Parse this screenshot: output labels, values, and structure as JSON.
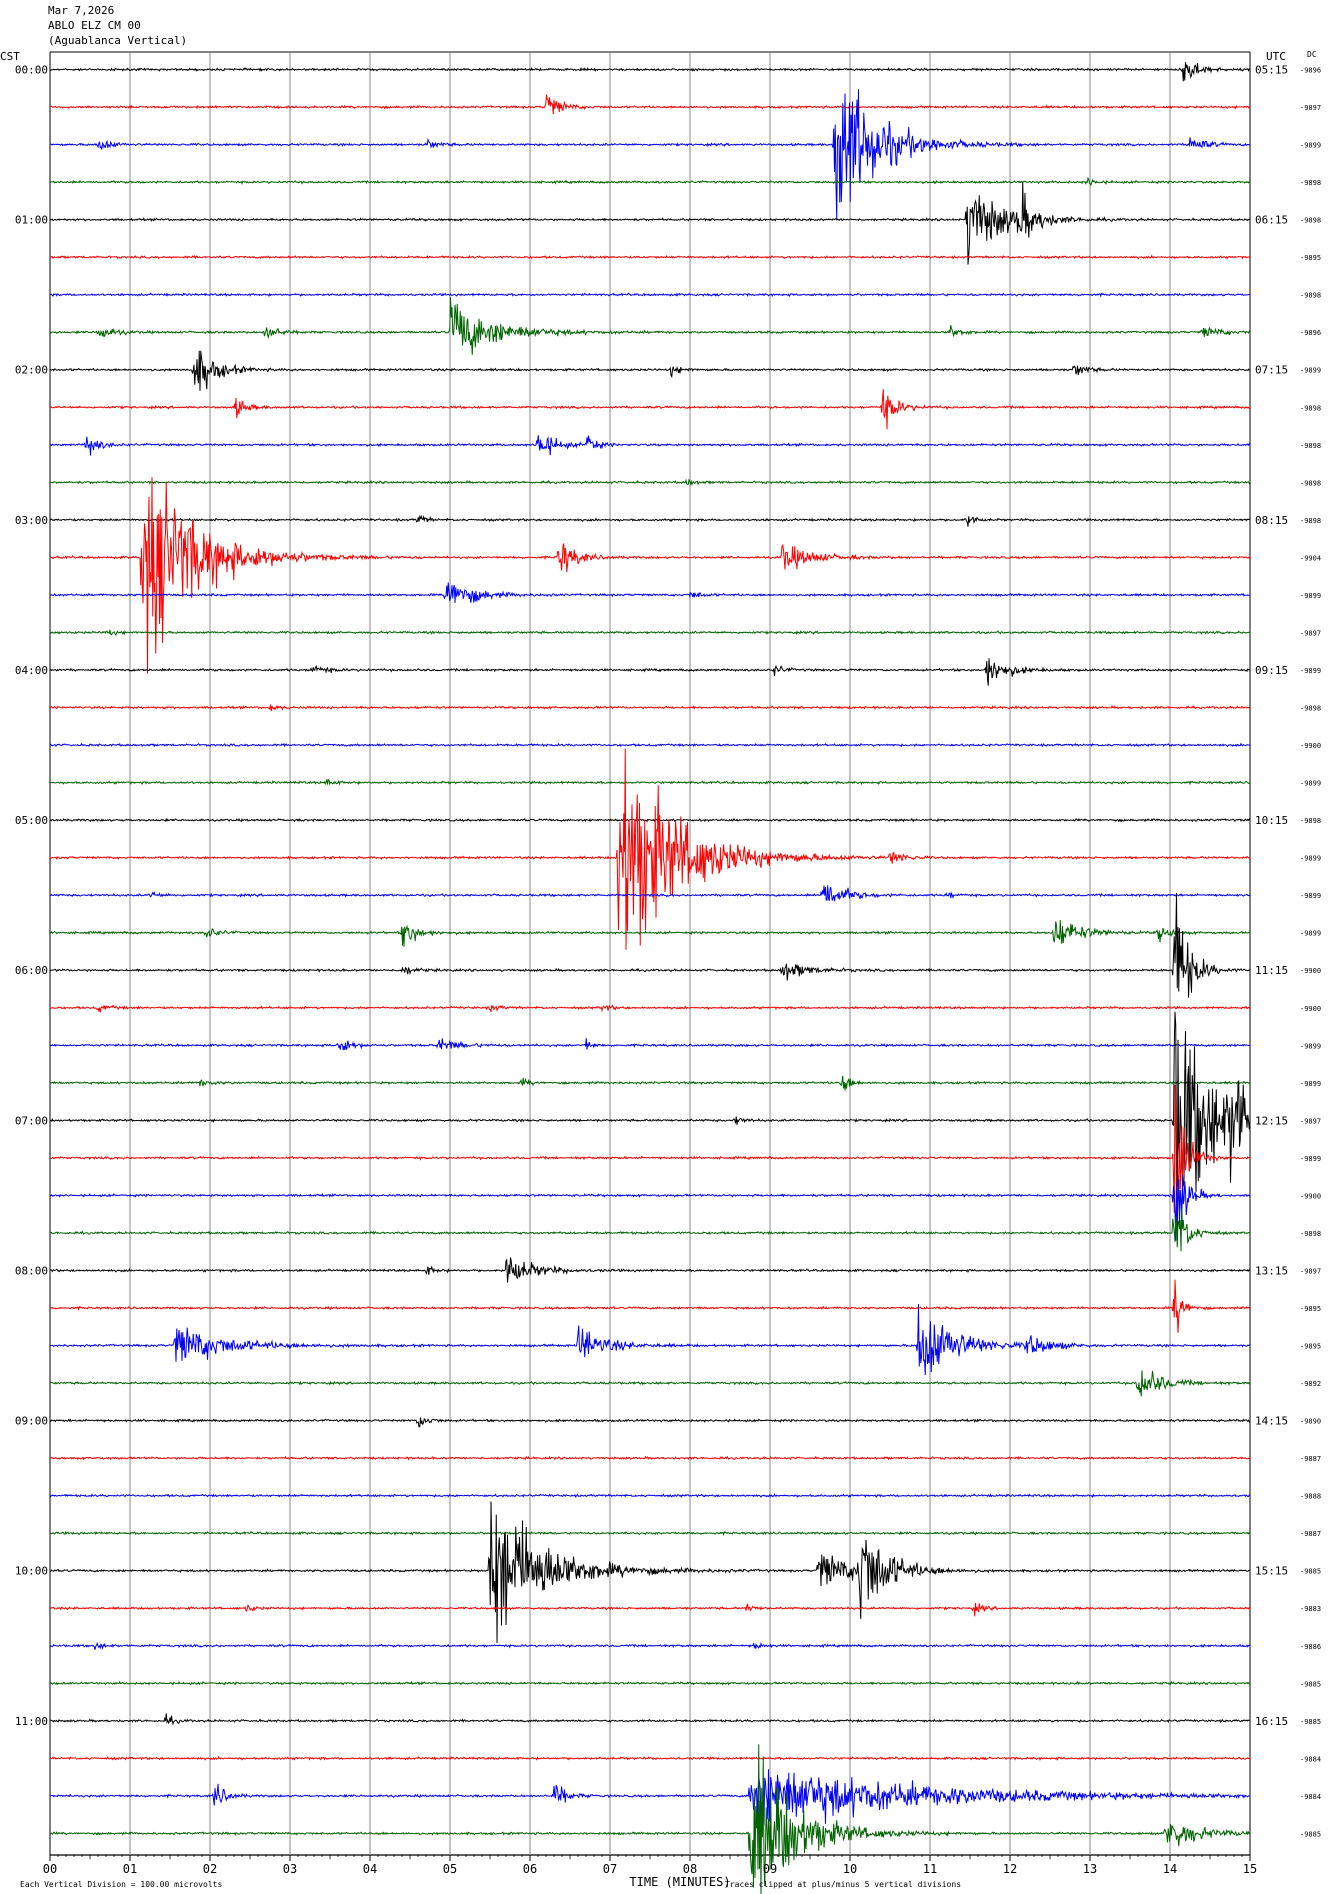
{
  "header": {
    "line1": "Mar 7,2026",
    "line2": "ABLO ELZ CM 00",
    "line3": "(Aguablanca Vertical)"
  },
  "left_axis_title": "CST",
  "right_axis_title": "UTC",
  "dc_title": "DC",
  "footer": {
    "left": "Each Vertical Division =  100.00 microvolts",
    "center": "TIME (MINUTES)",
    "right": "Traces clipped at plus/minus 5 vertical divisions"
  },
  "chart_data": {
    "type": "line",
    "title": "Mar 7,2026 ABLO ELZ CM 00 (Aguablanca Vertical)",
    "xlabel": "TIME (MINUTES)",
    "ylabel": "CST",
    "xlim": [
      0,
      15
    ],
    "x_ticks": [
      "00",
      "01",
      "02",
      "03",
      "04",
      "05",
      "06",
      "07",
      "08",
      "09",
      "10",
      "11",
      "12",
      "13",
      "14",
      "15"
    ],
    "trace_colors": [
      "#000000",
      "#ff0000",
      "#0000ff",
      "#006400"
    ],
    "hour_labels_cst": [
      "00:00",
      "01:00",
      "02:00",
      "03:00",
      "04:00",
      "05:00",
      "06:00",
      "07:00",
      "08:00",
      "09:00",
      "10:00",
      "11:00"
    ],
    "hour_labels_utc": [
      "05:15",
      "06:15",
      "07:15",
      "08:15",
      "09:15",
      "10:15",
      "11:15",
      "12:15",
      "13:15",
      "14:15",
      "15:15",
      "16:15"
    ],
    "dc_offsets": [
      "-9896",
      "-9897",
      "-9899",
      "-9898",
      "-9898",
      "-9895",
      "-9898",
      "-9896",
      "-9899",
      "-9898",
      "-9898",
      "-9898",
      "-9898",
      "-9904",
      "-9899",
      "-9897",
      "-9899",
      "-9898",
      "-9900",
      "-9899",
      "-9898",
      "-9899",
      "-9899",
      "-9899",
      "-9900",
      "-9900",
      "-9899",
      "-9899",
      "-9897",
      "-9899",
      "-9900",
      "-9898",
      "-9897",
      "-9895",
      "-9895",
      "-9892",
      "-9890",
      "-9887",
      "-9888",
      "-9887",
      "-9885",
      "-9883",
      "-9886",
      "-9885",
      "-9885",
      "-9884",
      "-9884",
      "-9885"
    ],
    "noise_level": 0.7,
    "events": [
      {
        "row": 0,
        "minute": 14.15,
        "amp": 14,
        "dur": 0.35
      },
      {
        "row": 1,
        "minute": 6.2,
        "amp": 12,
        "dur": 0.35
      },
      {
        "row": 2,
        "minute": 0.6,
        "amp": 6,
        "dur": 0.3
      },
      {
        "row": 2,
        "minute": 4.7,
        "amp": 4,
        "dur": 0.3
      },
      {
        "row": 2,
        "minute": 9.8,
        "amp": 70,
        "dur": 1.2
      },
      {
        "row": 2,
        "minute": 14.25,
        "amp": 8,
        "dur": 0.35
      },
      {
        "row": 3,
        "minute": 12.95,
        "amp": 4,
        "dur": 0.2
      },
      {
        "row": 4,
        "minute": 11.45,
        "amp": 32,
        "dur": 1.0
      },
      {
        "row": 4,
        "minute": 12.1,
        "amp": 20,
        "dur": 0.4
      },
      {
        "row": 7,
        "minute": 0.6,
        "amp": 6,
        "dur": 0.4
      },
      {
        "row": 7,
        "minute": 2.7,
        "amp": 7,
        "dur": 0.3
      },
      {
        "row": 7,
        "minute": 5.0,
        "amp": 24,
        "dur": 1.3
      },
      {
        "row": 7,
        "minute": 11.25,
        "amp": 5,
        "dur": 0.3
      },
      {
        "row": 7,
        "minute": 14.4,
        "amp": 4,
        "dur": 0.6
      },
      {
        "row": 8,
        "minute": 1.8,
        "amp": 20,
        "dur": 0.6
      },
      {
        "row": 8,
        "minute": 7.75,
        "amp": 4,
        "dur": 0.3
      },
      {
        "row": 8,
        "minute": 12.8,
        "amp": 6,
        "dur": 0.3
      },
      {
        "row": 9,
        "minute": 2.3,
        "amp": 8,
        "dur": 0.3
      },
      {
        "row": 9,
        "minute": 10.4,
        "amp": 15,
        "dur": 0.4
      },
      {
        "row": 10,
        "minute": 0.45,
        "amp": 10,
        "dur": 0.3
      },
      {
        "row": 10,
        "minute": 6.1,
        "amp": 14,
        "dur": 0.4
      },
      {
        "row": 10,
        "minute": 6.7,
        "amp": 12,
        "dur": 0.2
      },
      {
        "row": 11,
        "minute": 7.95,
        "amp": 3,
        "dur": 0.2
      },
      {
        "row": 12,
        "minute": 4.6,
        "amp": 4,
        "dur": 0.2
      },
      {
        "row": 12,
        "minute": 11.45,
        "amp": 7,
        "dur": 0.15
      },
      {
        "row": 13,
        "minute": 1.15,
        "amp": 80,
        "dur": 1.6
      },
      {
        "row": 13,
        "minute": 6.35,
        "amp": 16,
        "dur": 0.45
      },
      {
        "row": 13,
        "minute": 9.15,
        "amp": 10,
        "dur": 0.9
      },
      {
        "row": 14,
        "minute": 4.95,
        "amp": 16,
        "dur": 0.7
      },
      {
        "row": 14,
        "minute": 8.0,
        "amp": 3,
        "dur": 0.3
      },
      {
        "row": 15,
        "minute": 0.7,
        "amp": 3,
        "dur": 0.2
      },
      {
        "row": 16,
        "minute": 3.25,
        "amp": 4,
        "dur": 0.4
      },
      {
        "row": 16,
        "minute": 9.05,
        "amp": 5,
        "dur": 0.2
      },
      {
        "row": 16,
        "minute": 11.7,
        "amp": 12,
        "dur": 0.6
      },
      {
        "row": 17,
        "minute": 2.75,
        "amp": 3,
        "dur": 0.2
      },
      {
        "row": 19,
        "minute": 3.45,
        "amp": 3,
        "dur": 0.2
      },
      {
        "row": 21,
        "minute": 7.1,
        "amp": 95,
        "dur": 1.7
      },
      {
        "row": 21,
        "minute": 10.5,
        "amp": 5,
        "dur": 0.4
      },
      {
        "row": 22,
        "minute": 9.65,
        "amp": 14,
        "dur": 0.6
      },
      {
        "row": 22,
        "minute": 1.25,
        "amp": 3,
        "dur": 0.2
      },
      {
        "row": 22,
        "minute": 11.2,
        "amp": 3,
        "dur": 0.2
      },
      {
        "row": 23,
        "minute": 1.95,
        "amp": 5,
        "dur": 0.3
      },
      {
        "row": 23,
        "minute": 4.4,
        "amp": 12,
        "dur": 0.4
      },
      {
        "row": 23,
        "minute": 12.55,
        "amp": 14,
        "dur": 0.7
      },
      {
        "row": 23,
        "minute": 13.85,
        "amp": 6,
        "dur": 0.3
      },
      {
        "row": 24,
        "minute": 4.4,
        "amp": 4,
        "dur": 0.3
      },
      {
        "row": 24,
        "minute": 9.15,
        "amp": 8,
        "dur": 0.7
      },
      {
        "row": 24,
        "minute": 14.05,
        "amp": 60,
        "dur": 0.4
      },
      {
        "row": 25,
        "minute": 0.6,
        "amp": 3,
        "dur": 0.3
      },
      {
        "row": 25,
        "minute": 5.5,
        "amp": 3,
        "dur": 0.2
      },
      {
        "row": 25,
        "minute": 6.9,
        "amp": 3,
        "dur": 0.2
      },
      {
        "row": 26,
        "minute": 3.6,
        "amp": 8,
        "dur": 0.3
      },
      {
        "row": 26,
        "minute": 4.85,
        "amp": 5,
        "dur": 0.6
      },
      {
        "row": 26,
        "minute": 6.7,
        "amp": 6,
        "dur": 0.1
      },
      {
        "row": 27,
        "minute": 1.85,
        "amp": 3,
        "dur": 0.3
      },
      {
        "row": 27,
        "minute": 5.9,
        "amp": 3,
        "dur": 0.2
      },
      {
        "row": 27,
        "minute": 9.9,
        "amp": 9,
        "dur": 0.2
      },
      {
        "row": 28,
        "minute": 14.05,
        "amp": 90,
        "dur": 1.2
      },
      {
        "row": 28,
        "minute": 14.75,
        "amp": 40,
        "dur": 0.5
      },
      {
        "row": 28,
        "minute": 8.55,
        "amp": 4,
        "dur": 0.2
      },
      {
        "row": 29,
        "minute": 14.05,
        "amp": 60,
        "dur": 0.3
      },
      {
        "row": 30,
        "minute": 14.05,
        "amp": 40,
        "dur": 0.3
      },
      {
        "row": 31,
        "minute": 14.05,
        "amp": 35,
        "dur": 0.3
      },
      {
        "row": 32,
        "minute": 5.7,
        "amp": 12,
        "dur": 0.8
      },
      {
        "row": 32,
        "minute": 4.7,
        "amp": 4,
        "dur": 0.2
      },
      {
        "row": 33,
        "minute": 14.05,
        "amp": 25,
        "dur": 0.2
      },
      {
        "row": 34,
        "minute": 1.55,
        "amp": 16,
        "dur": 1.5
      },
      {
        "row": 34,
        "minute": 6.6,
        "amp": 14,
        "dur": 0.8
      },
      {
        "row": 34,
        "minute": 10.85,
        "amp": 36,
        "dur": 1.0
      },
      {
        "row": 34,
        "minute": 12.2,
        "amp": 8,
        "dur": 0.7
      },
      {
        "row": 35,
        "minute": 13.6,
        "amp": 16,
        "dur": 0.6
      },
      {
        "row": 36,
        "minute": 4.6,
        "amp": 7,
        "dur": 0.2
      },
      {
        "row": 40,
        "minute": 5.5,
        "amp": 60,
        "dur": 1.6
      },
      {
        "row": 40,
        "minute": 9.6,
        "amp": 16,
        "dur": 1.0
      },
      {
        "row": 40,
        "minute": 10.1,
        "amp": 40,
        "dur": 0.8
      },
      {
        "row": 41,
        "minute": 2.45,
        "amp": 3,
        "dur": 0.2
      },
      {
        "row": 41,
        "minute": 8.7,
        "amp": 3,
        "dur": 0.2
      },
      {
        "row": 41,
        "minute": 11.55,
        "amp": 4,
        "dur": 0.2
      },
      {
        "row": 42,
        "minute": 0.55,
        "amp": 3,
        "dur": 0.2
      },
      {
        "row": 42,
        "minute": 8.8,
        "amp": 3,
        "dur": 0.2
      },
      {
        "row": 44,
        "minute": 1.45,
        "amp": 4,
        "dur": 0.2
      },
      {
        "row": 46,
        "minute": 2.05,
        "amp": 10,
        "dur": 0.3
      },
      {
        "row": 46,
        "minute": 6.3,
        "amp": 12,
        "dur": 0.3
      },
      {
        "row": 46,
        "minute": 8.75,
        "amp": 25,
        "dur": 4.8
      },
      {
        "row": 47,
        "minute": 8.75,
        "amp": 70,
        "dur": 1.3
      },
      {
        "row": 47,
        "minute": 13.95,
        "amp": 14,
        "dur": 0.9
      }
    ]
  }
}
